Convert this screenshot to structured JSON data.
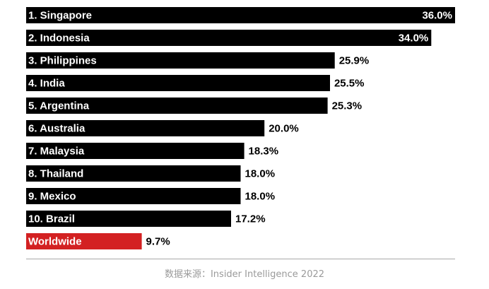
{
  "chart_data": {
    "type": "bar",
    "orientation": "horizontal",
    "categories": [
      "1. Singapore",
      "2. Indonesia",
      "3. Philippines",
      "4. India",
      "5. Argentina",
      "6. Australia",
      "7. Malaysia",
      "8. Thailand",
      "9. Mexico",
      "10. Brazil",
      "Worldwide"
    ],
    "values": [
      36.0,
      34.0,
      25.9,
      25.5,
      25.3,
      20.0,
      18.3,
      18.0,
      18.0,
      17.2,
      9.7
    ],
    "value_labels": [
      "36.0%",
      "34.0%",
      "25.9%",
      "25.5%",
      "25.3%",
      "20.0%",
      "18.3%",
      "18.0%",
      "18.0%",
      "17.2%",
      "9.7%"
    ],
    "colors": [
      "#000000",
      "#000000",
      "#000000",
      "#000000",
      "#000000",
      "#000000",
      "#000000",
      "#000000",
      "#000000",
      "#000000",
      "#d32122"
    ],
    "xlim": [
      0,
      36.0
    ],
    "grid": false,
    "legend": "none"
  },
  "source": "数据来源：Insider Intelligence 2022"
}
